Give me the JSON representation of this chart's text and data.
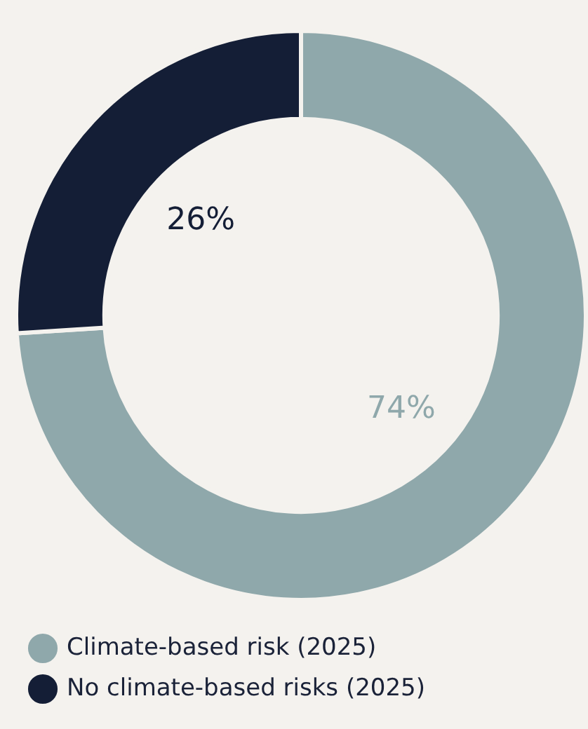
{
  "chart_data": {
    "type": "donut",
    "categories": [
      "Climate-based risk (2025)",
      "No climate-based risks (2025)"
    ],
    "values": [
      74,
      26
    ],
    "colors": [
      "#8fa8ab",
      "#141e36"
    ],
    "value_labels": [
      "74%",
      "26%"
    ],
    "legend": "bottom"
  }
}
